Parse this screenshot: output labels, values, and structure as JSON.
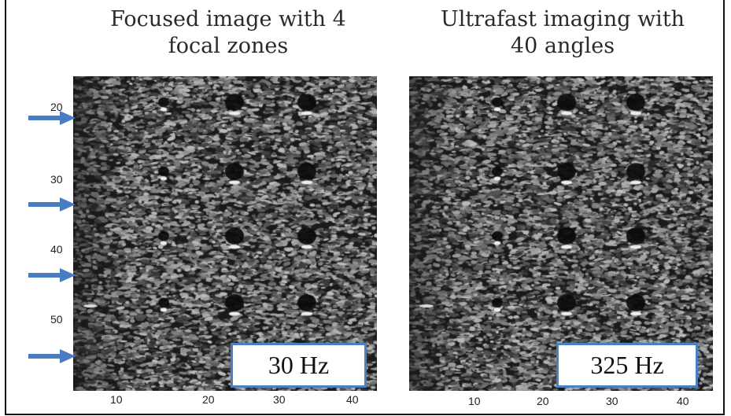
{
  "panels": [
    {
      "title_line1": "Focused image with 4",
      "title_line2": "focal zones",
      "frame_rate": "30 Hz"
    },
    {
      "title_line1": "Ultrafast imaging with",
      "title_line2": "40  angles",
      "frame_rate": "325 Hz"
    }
  ],
  "y_ticks": [
    "20",
    "30",
    "40",
    "50"
  ],
  "x_ticks": [
    "10",
    "20",
    "30",
    "40"
  ],
  "focal_zone_arrows": 4,
  "colors": {
    "arrow": "#4a7cc4",
    "label_border": "#4a7fc0"
  }
}
